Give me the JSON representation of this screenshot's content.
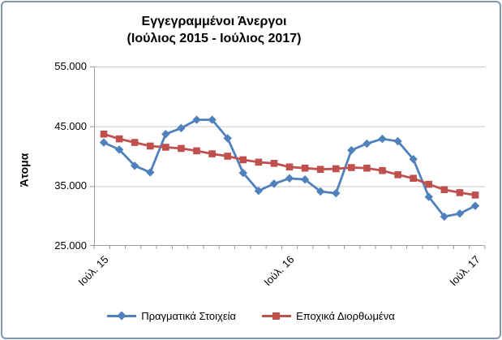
{
  "frame": {
    "border_color": "#7d97ad"
  },
  "chart_data": {
    "type": "line",
    "title": "Εγγεγραμμένοι Άνεργοι",
    "subtitle": "(Ιούλιος 2015 - Ιούλιος 2017)",
    "ylabel": "Άτομα",
    "xlabel": "",
    "ylim": [
      25000,
      55000
    ],
    "y_ticks": [
      55000,
      45000,
      35000,
      25000
    ],
    "y_tick_labels": [
      "55.000",
      "45.000",
      "35.000",
      "25.000"
    ],
    "x_count": 25,
    "x_ticks": [
      {
        "index": 0,
        "label": "Ιούλ. 15"
      },
      {
        "index": 12,
        "label": "Ιούλ. 16"
      },
      {
        "index": 24,
        "label": "Ιούλ. 17"
      }
    ],
    "grid": true,
    "grid_color": "#c9c9c9",
    "legend_position": "bottom",
    "series": [
      {
        "name": "Πραγματικά Στοιχεία",
        "color": "#4F81BD",
        "marker": "diamond",
        "values": [
          42300,
          41100,
          38400,
          37300,
          43700,
          44700,
          46100,
          46100,
          43000,
          37200,
          34200,
          35400,
          36300,
          36100,
          34100,
          33800,
          41000,
          42100,
          42900,
          42500,
          39500,
          33200,
          29900,
          30400,
          31700
        ]
      },
      {
        "name": "Εποχικά Διορθωμένα",
        "color": "#C0504D",
        "marker": "square",
        "values": [
          43700,
          42900,
          42300,
          41700,
          41500,
          41300,
          40900,
          40400,
          40000,
          39400,
          39000,
          38800,
          38200,
          38000,
          37800,
          37900,
          38100,
          38000,
          37600,
          36900,
          36300,
          35300,
          34400,
          33900,
          33500
        ]
      }
    ]
  }
}
